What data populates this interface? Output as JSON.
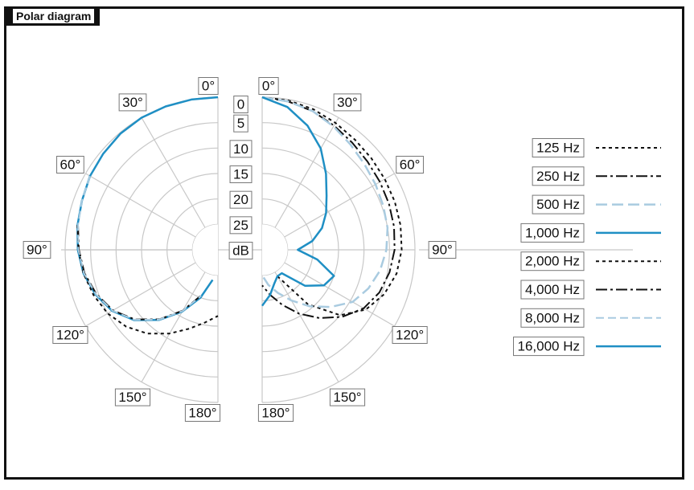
{
  "window": {
    "title": "Polar diagram"
  },
  "chart_data": {
    "type": "polar",
    "angle_labels_left": [
      "0°",
      "30°",
      "60°",
      "90°",
      "120°",
      "150°",
      "180°"
    ],
    "angle_labels_right": [
      "0°",
      "30°",
      "60°",
      "90°",
      "120°",
      "150°",
      "180°"
    ],
    "angles_deg": [
      0,
      30,
      60,
      90,
      120,
      150,
      180
    ],
    "radial_ticks": [
      "0",
      "5",
      "10",
      "15",
      "20",
      "25"
    ],
    "radial_values": [
      0,
      5,
      10,
      15,
      20,
      25
    ],
    "radial_unit": "dB",
    "rmax_db": 30,
    "grid": true,
    "legend_position": "right",
    "series": [
      {
        "name": "125 Hz",
        "side": "right",
        "color": "#111111",
        "dash": "4,4",
        "width": 2,
        "angles": [
          0,
          10,
          20,
          30,
          40,
          50,
          60,
          70,
          80,
          90,
          100,
          110,
          120,
          130,
          140,
          150
        ],
        "db": [
          0,
          0.2,
          0.6,
          1.2,
          1.7,
          2.0,
          2.2,
          2.3,
          2.4,
          2.6,
          3.2,
          4.5,
          6.5,
          10,
          16,
          24
        ]
      },
      {
        "name": "250 Hz",
        "side": "right",
        "color": "#111111",
        "dash": "14,4,3,4",
        "width": 2,
        "angles": [
          0,
          10,
          20,
          30,
          40,
          50,
          60,
          70,
          80,
          90,
          100,
          110,
          120,
          130,
          140,
          150,
          160,
          170,
          180
        ],
        "db": [
          0,
          0.4,
          1.0,
          1.8,
          2.5,
          3.0,
          3.3,
          3.5,
          3.7,
          4.0,
          4.6,
          5.5,
          7.0,
          9.5,
          12.5,
          15.5,
          18.5,
          21,
          23
        ]
      },
      {
        "name": "500 Hz",
        "side": "right",
        "color": "#a9cbe0",
        "dash": "14,6",
        "width": 2.5,
        "angles": [
          0,
          10,
          20,
          30,
          40,
          50,
          60,
          70,
          80,
          90,
          100,
          110,
          120,
          130,
          140,
          150,
          160,
          170,
          180
        ],
        "db": [
          0,
          0.4,
          1.0,
          2.0,
          3.0,
          3.8,
          4.3,
          4.7,
          5.0,
          5.6,
          6.5,
          7.8,
          9.5,
          12.5,
          15.5,
          18.5,
          21,
          23,
          25
        ]
      },
      {
        "name": "1,000 Hz",
        "side": "left",
        "color": "#1f8fc4",
        "dash": "",
        "width": 2.5,
        "angles": [
          0,
          10,
          20,
          30,
          40,
          50,
          60,
          70,
          80,
          90,
          100,
          110,
          120,
          130,
          140,
          150,
          160,
          170
        ],
        "db": [
          0,
          0,
          0,
          0,
          0.2,
          0.6,
          1.0,
          1.6,
          2.0,
          2.5,
          3.2,
          4.4,
          6.0,
          8.5,
          12,
          16,
          20,
          24
        ]
      },
      {
        "name": "2,000 Hz",
        "side": "left",
        "color": "#111111",
        "dash": "4,4",
        "width": 2,
        "angles": [
          80,
          90,
          100,
          110,
          120,
          130,
          140,
          150,
          160,
          170,
          180
        ],
        "db": [
          2.0,
          2.6,
          3.2,
          4.0,
          5.0,
          6.5,
          8.5,
          11,
          13.5,
          15.5,
          17
        ]
      },
      {
        "name": "4,000 Hz",
        "side": "left",
        "color": "#111111",
        "dash": "14,4,3,4",
        "width": 2,
        "angles": [
          80,
          90,
          100,
          110,
          120,
          130,
          140,
          150,
          160
        ],
        "db": [
          2.1,
          2.7,
          3.4,
          4.6,
          6.2,
          8.7,
          12.2,
          16.2,
          20.5
        ]
      },
      {
        "name": "8,000 Hz",
        "side": "left",
        "color": "#a9cbe0",
        "dash": "10,5",
        "width": 2,
        "angles": [
          60,
          70,
          80,
          90,
          100,
          110,
          120,
          130,
          140,
          150,
          160
        ],
        "db": [
          1.0,
          1.6,
          2.1,
          2.6,
          3.3,
          4.5,
          6.1,
          8.6,
          12.1,
          16.1,
          20.4
        ]
      },
      {
        "name": "16,000 Hz",
        "side": "right",
        "color": "#1f8fc4",
        "dash": "",
        "width": 2.5,
        "angles": [
          0,
          10,
          20,
          30,
          40,
          50,
          60,
          70,
          80,
          90,
          100,
          110,
          120,
          130,
          140,
          150,
          160,
          170,
          180
        ],
        "db": [
          0,
          1.5,
          4,
          7,
          10.5,
          13.5,
          15.5,
          17.5,
          20,
          23,
          19,
          15,
          16,
          19,
          24,
          24,
          23,
          21,
          19
        ]
      }
    ]
  }
}
